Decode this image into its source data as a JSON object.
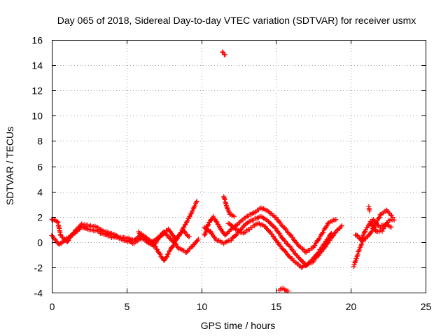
{
  "chart_data": {
    "type": "scatter",
    "title": "Day 065 of 2018, Sidereal Day-to-day VTEC variation (SDTVAR) for receiver usmx",
    "xlabel": "GPS time / hours",
    "ylabel": "SDTVAR / TECUs",
    "xlim": [
      0,
      25
    ],
    "ylim": [
      -4,
      16
    ],
    "xticks": [
      0,
      5,
      10,
      15,
      20,
      25
    ],
    "yticks": [
      -4,
      -2,
      0,
      2,
      4,
      6,
      8,
      10,
      12,
      14,
      16
    ],
    "xtick_labels": [
      "0",
      "5",
      "10",
      "15",
      "20",
      "25"
    ],
    "ytick_labels": [
      "-4",
      "-2",
      "0",
      "2",
      "4",
      "6",
      "8",
      "10",
      "12",
      "14",
      "16"
    ],
    "grid": true,
    "marker": "+",
    "color": "#ff0000",
    "series": [
      {
        "name": "SDTVAR",
        "tracks": [
          [
            [
              0.0,
              1.8
            ],
            [
              0.4,
              1.6
            ],
            [
              0.6,
              0.5
            ],
            [
              1.0,
              0.0
            ],
            [
              1.5,
              0.8
            ],
            [
              2.0,
              1.4
            ],
            [
              2.5,
              1.3
            ],
            [
              3.0,
              1.2
            ],
            [
              3.5,
              0.8
            ],
            [
              4.0,
              0.7
            ],
            [
              4.5,
              0.4
            ],
            [
              5.0,
              0.3
            ],
            [
              5.5,
              0.2
            ],
            [
              6.0,
              0.6
            ],
            [
              6.5,
              0.2
            ],
            [
              7.0,
              -0.5
            ],
            [
              7.5,
              -1.5
            ],
            [
              8.0,
              -0.5
            ],
            [
              8.5,
              0.5
            ],
            [
              9.0,
              1.5
            ],
            [
              9.5,
              2.7
            ],
            [
              9.7,
              3.2
            ]
          ],
          [
            [
              0.0,
              0.5
            ],
            [
              0.5,
              -0.2
            ],
            [
              1.0,
              0.3
            ],
            [
              1.5,
              0.7
            ],
            [
              2.0,
              1.2
            ],
            [
              2.5,
              1.0
            ],
            [
              3.0,
              0.9
            ],
            [
              3.5,
              0.6
            ],
            [
              4.0,
              0.4
            ],
            [
              4.5,
              0.3
            ],
            [
              5.0,
              0.1
            ],
            [
              5.5,
              -0.1
            ],
            [
              6.0,
              0.3
            ],
            [
              6.5,
              -0.1
            ],
            [
              7.0,
              0.2
            ],
            [
              7.5,
              0.8
            ],
            [
              8.0,
              0.2
            ],
            [
              8.5,
              -0.5
            ],
            [
              9.0,
              -0.8
            ],
            [
              9.5,
              -0.2
            ],
            [
              9.8,
              0.2
            ]
          ],
          [
            [
              5.8,
              0.8
            ],
            [
              6.2,
              0.3
            ],
            [
              6.8,
              -0.3
            ],
            [
              7.3,
              0.5
            ],
            [
              7.8,
              1.0
            ],
            [
              8.3,
              0.2
            ],
            [
              8.8,
              0.9
            ],
            [
              9.2,
              0.4
            ]
          ],
          [
            [
              10.2,
              0.5
            ],
            [
              10.5,
              1.5
            ],
            [
              10.8,
              2.0
            ],
            [
              11.2,
              1.2
            ],
            [
              11.6,
              0.5
            ],
            [
              12.0,
              1.0
            ],
            [
              12.5,
              1.5
            ],
            [
              13.0,
              2.0
            ],
            [
              13.5,
              2.3
            ],
            [
              14.0,
              2.7
            ],
            [
              14.5,
              2.4
            ],
            [
              15.0,
              1.9
            ],
            [
              15.5,
              1.2
            ],
            [
              16.0,
              0.5
            ],
            [
              16.5,
              -0.3
            ],
            [
              17.0,
              -0.8
            ],
            [
              17.5,
              -0.4
            ],
            [
              18.0,
              0.5
            ],
            [
              18.5,
              1.5
            ],
            [
              19.0,
              1.8
            ]
          ],
          [
            [
              10.2,
              1.2
            ],
            [
              10.6,
              0.8
            ],
            [
              11.0,
              0.2
            ],
            [
              11.5,
              -0.1
            ],
            [
              12.0,
              0.2
            ],
            [
              12.5,
              0.8
            ],
            [
              13.0,
              1.5
            ],
            [
              13.5,
              1.8
            ],
            [
              14.0,
              2.0
            ],
            [
              14.5,
              1.6
            ],
            [
              15.0,
              1.0
            ],
            [
              15.5,
              0.2
            ],
            [
              16.0,
              -0.5
            ],
            [
              16.5,
              -1.2
            ],
            [
              17.0,
              -1.8
            ],
            [
              17.5,
              -1.5
            ],
            [
              18.0,
              -0.8
            ],
            [
              18.5,
              0.0
            ],
            [
              19.0,
              0.8
            ],
            [
              19.4,
              1.3
            ]
          ],
          [
            [
              11.8,
              1.5
            ],
            [
              12.3,
              1.0
            ],
            [
              12.8,
              0.7
            ],
            [
              13.3,
              1.1
            ],
            [
              13.8,
              1.5
            ],
            [
              14.3,
              1.2
            ],
            [
              14.8,
              0.5
            ],
            [
              15.2,
              -0.2
            ],
            [
              15.7,
              -0.9
            ],
            [
              16.2,
              -1.5
            ],
            [
              16.7,
              -2.0
            ],
            [
              17.2,
              -1.7
            ],
            [
              17.7,
              -1.0
            ],
            [
              18.2,
              -0.2
            ],
            [
              18.7,
              0.7
            ]
          ],
          [
            [
              11.5,
              3.6
            ],
            [
              11.7,
              2.8
            ],
            [
              11.9,
              2.2
            ],
            [
              12.2,
              2.0
            ]
          ],
          [
            [
              20.2,
              -1.9
            ],
            [
              20.5,
              -0.8
            ],
            [
              20.8,
              0.1
            ],
            [
              21.2,
              0.5
            ],
            [
              21.6,
              1.3
            ],
            [
              22.0,
              2.2
            ],
            [
              22.4,
              2.5
            ],
            [
              22.8,
              2.0
            ]
          ],
          [
            [
              20.3,
              0.6
            ],
            [
              20.7,
              0.2
            ],
            [
              21.0,
              1.0
            ],
            [
              21.5,
              1.8
            ],
            [
              21.9,
              1.2
            ],
            [
              22.3,
              1.4
            ],
            [
              22.7,
              1.2
            ]
          ],
          [
            [
              21.3,
              1.6
            ],
            [
              21.7,
              0.8
            ],
            [
              22.1,
              0.9
            ],
            [
              22.5,
              1.7
            ],
            [
              22.9,
              1.8
            ]
          ],
          [
            [
              21.2,
              2.8
            ],
            [
              21.25,
              2.5
            ]
          ],
          [
            [
              11.4,
              15.0
            ],
            [
              11.6,
              14.8
            ]
          ],
          [
            [
              15.2,
              -3.8
            ],
            [
              15.5,
              -3.7
            ],
            [
              15.8,
              -3.9
            ]
          ]
        ]
      }
    ]
  }
}
